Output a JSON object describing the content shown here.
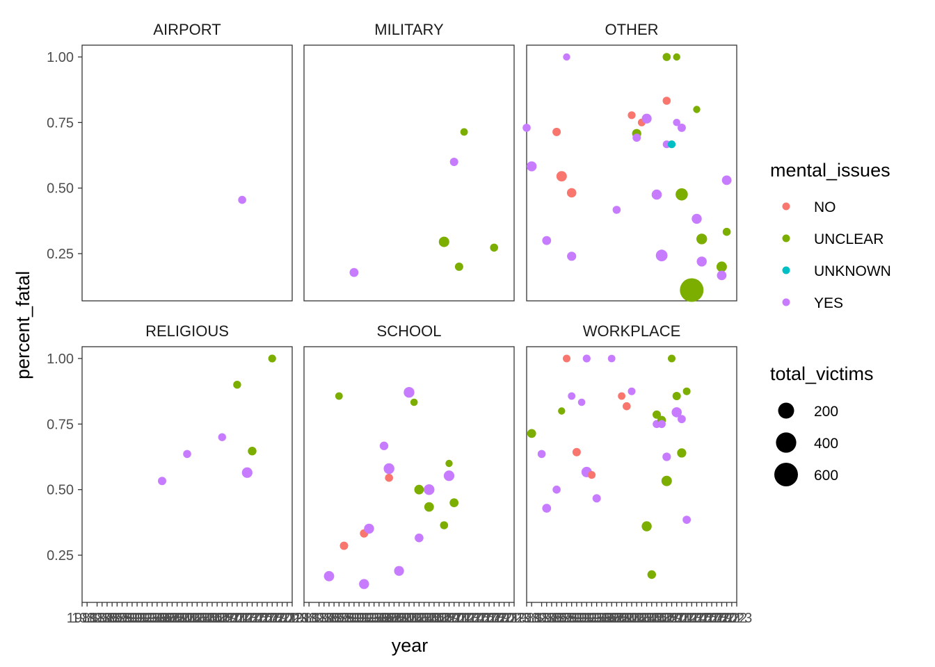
{
  "chart_data": {
    "type": "scatter",
    "xlabel": "year",
    "ylabel": "percent_fatal",
    "x_type": "category",
    "x_range": [
      1981,
      2023
    ],
    "ylim": [
      0.07,
      1.045
    ],
    "y_ticks": [
      0.25,
      0.5,
      0.75,
      1.0
    ],
    "y_tick_labels": [
      "0.25",
      "0.50",
      "0.75",
      "1.00"
    ],
    "grid": false,
    "color_legend": {
      "title": "mental_issues",
      "placement": "right",
      "entries": [
        {
          "label": "NO",
          "color": "#F8766D"
        },
        {
          "label": "UNCLEAR",
          "color": "#7CAE00"
        },
        {
          "label": "UNKNOWN",
          "color": "#00BFC4"
        },
        {
          "label": "YES",
          "color": "#C77CFF"
        }
      ]
    },
    "size_legend": {
      "title": "total_victims",
      "placement": "right",
      "entries": [
        {
          "label": "200",
          "value": 200
        },
        {
          "label": "400",
          "value": 400
        },
        {
          "label": "600",
          "value": 600
        }
      ]
    },
    "panels": [
      {
        "title": "AIRPORT",
        "points": [
          {
            "year": 2013,
            "pf": 0.455,
            "mi": "YES",
            "tv": 11
          }
        ]
      },
      {
        "title": "MILITARY",
        "points": [
          {
            "year": 1991,
            "pf": 0.178,
            "mi": "YES",
            "tv": 21
          },
          {
            "year": 2009,
            "pf": 0.295,
            "mi": "UNCLEAR",
            "tv": 43
          },
          {
            "year": 2011,
            "pf": 0.6,
            "mi": "YES",
            "tv": 14
          },
          {
            "year": 2012,
            "pf": 0.2,
            "mi": "UNCLEAR",
            "tv": 14
          },
          {
            "year": 2013,
            "pf": 0.714,
            "mi": "UNCLEAR",
            "tv": 7
          },
          {
            "year": 2019,
            "pf": 0.273,
            "mi": "UNCLEAR",
            "tv": 11
          }
        ]
      },
      {
        "title": "OTHER",
        "points": [
          {
            "year": 1981,
            "pf": 0.73,
            "mi": "YES",
            "tv": 11
          },
          {
            "year": 1982,
            "pf": 0.583,
            "mi": "YES",
            "tv": 36
          },
          {
            "year": 1985,
            "pf": 0.3,
            "mi": "YES",
            "tv": 20
          },
          {
            "year": 1987,
            "pf": 0.714,
            "mi": "NO",
            "tv": 14
          },
          {
            "year": 1988,
            "pf": 0.545,
            "mi": "NO",
            "tv": 44
          },
          {
            "year": 1989,
            "pf": 1.0,
            "mi": "YES",
            "tv": 5
          },
          {
            "year": 1990,
            "pf": 0.482,
            "mi": "NO",
            "tv": 29
          },
          {
            "year": 1990,
            "pf": 0.24,
            "mi": "YES",
            "tv": 25
          },
          {
            "year": 1999,
            "pf": 0.417,
            "mi": "YES",
            "tv": 12
          },
          {
            "year": 2002,
            "pf": 0.778,
            "mi": "NO",
            "tv": 9
          },
          {
            "year": 2003,
            "pf": 0.708,
            "mi": "UNCLEAR",
            "tv": 24
          },
          {
            "year": 2003,
            "pf": 0.692,
            "mi": "YES",
            "tv": 13
          },
          {
            "year": 2004,
            "pf": 0.75,
            "mi": "NO",
            "tv": 8
          },
          {
            "year": 2005,
            "pf": 0.765,
            "mi": "YES",
            "tv": 34
          },
          {
            "year": 2007,
            "pf": 0.475,
            "mi": "YES",
            "tv": 40
          },
          {
            "year": 2008,
            "pf": 0.243,
            "mi": "YES",
            "tv": 70
          },
          {
            "year": 2009,
            "pf": 1.0,
            "mi": "UNCLEAR",
            "tv": 12
          },
          {
            "year": 2009,
            "pf": 0.833,
            "mi": "NO",
            "tv": 12
          },
          {
            "year": 2009,
            "pf": 0.667,
            "mi": "YES",
            "tv": 9
          },
          {
            "year": 2010,
            "pf": 0.667,
            "mi": "UNKNOWN",
            "tv": 9
          },
          {
            "year": 2011,
            "pf": 1.0,
            "mi": "UNCLEAR",
            "tv": 5
          },
          {
            "year": 2011,
            "pf": 0.75,
            "mi": "YES",
            "tv": 6
          },
          {
            "year": 2012,
            "pf": 0.476,
            "mi": "UNCLEAR",
            "tv": 82
          },
          {
            "year": 2012,
            "pf": 0.73,
            "mi": "YES",
            "tv": 15
          },
          {
            "year": 2014,
            "pf": 0.111,
            "mi": "UNCLEAR",
            "tv": 604
          },
          {
            "year": 2015,
            "pf": 0.8,
            "mi": "UNCLEAR",
            "tv": 5
          },
          {
            "year": 2015,
            "pf": 0.383,
            "mi": "YES",
            "tv": 36
          },
          {
            "year": 2016,
            "pf": 0.306,
            "mi": "UNCLEAR",
            "tv": 49
          },
          {
            "year": 2016,
            "pf": 0.22,
            "mi": "YES",
            "tv": 36
          },
          {
            "year": 2020,
            "pf": 0.2,
            "mi": "UNCLEAR",
            "tv": 45
          },
          {
            "year": 2020,
            "pf": 0.167,
            "mi": "YES",
            "tv": 30
          },
          {
            "year": 2021,
            "pf": 0.53,
            "mi": "YES",
            "tv": 30
          },
          {
            "year": 2021,
            "pf": 0.333,
            "mi": "UNCLEAR",
            "tv": 12
          }
        ]
      },
      {
        "title": "RELIGIOUS",
        "points": [
          {
            "year": 1997,
            "pf": 0.533,
            "mi": "YES",
            "tv": 15
          },
          {
            "year": 2002,
            "pf": 0.636,
            "mi": "YES",
            "tv": 11
          },
          {
            "year": 2009,
            "pf": 0.7,
            "mi": "YES",
            "tv": 10
          },
          {
            "year": 2012,
            "pf": 0.9,
            "mi": "UNCLEAR",
            "tv": 10
          },
          {
            "year": 2014,
            "pf": 0.565,
            "mi": "YES",
            "tv": 46
          },
          {
            "year": 2015,
            "pf": 0.647,
            "mi": "UNCLEAR",
            "tv": 17
          },
          {
            "year": 2019,
            "pf": 1.0,
            "mi": "UNCLEAR",
            "tv": 9
          }
        ]
      },
      {
        "title": "SCHOOL",
        "points": [
          {
            "year": 1986,
            "pf": 0.17,
            "mi": "YES",
            "tv": 41
          },
          {
            "year": 1988,
            "pf": 0.857,
            "mi": "UNCLEAR",
            "tv": 7
          },
          {
            "year": 1989,
            "pf": 0.286,
            "mi": "NO",
            "tv": 14
          },
          {
            "year": 1993,
            "pf": 0.333,
            "mi": "NO",
            "tv": 15
          },
          {
            "year": 1993,
            "pf": 0.14,
            "mi": "YES",
            "tv": 36
          },
          {
            "year": 1994,
            "pf": 0.351,
            "mi": "YES",
            "tv": 37
          },
          {
            "year": 1997,
            "pf": 0.667,
            "mi": "YES",
            "tv": 18
          },
          {
            "year": 1998,
            "pf": 0.545,
            "mi": "NO",
            "tv": 11
          },
          {
            "year": 1998,
            "pf": 0.58,
            "mi": "YES",
            "tv": 50
          },
          {
            "year": 2000,
            "pf": 0.19,
            "mi": "YES",
            "tv": 35
          },
          {
            "year": 2002,
            "pf": 0.871,
            "mi": "YES",
            "tv": 48
          },
          {
            "year": 2003,
            "pf": 0.833,
            "mi": "UNCLEAR",
            "tv": 6
          },
          {
            "year": 2004,
            "pf": 0.5,
            "mi": "UNCLEAR",
            "tv": 30
          },
          {
            "year": 2004,
            "pf": 0.316,
            "mi": "YES",
            "tv": 19
          },
          {
            "year": 2006,
            "pf": 0.5,
            "mi": "YES",
            "tv": 50
          },
          {
            "year": 2006,
            "pf": 0.434,
            "mi": "UNCLEAR",
            "tv": 30
          },
          {
            "year": 2009,
            "pf": 0.364,
            "mi": "UNCLEAR",
            "tv": 11
          },
          {
            "year": 2010,
            "pf": 0.6,
            "mi": "UNCLEAR",
            "tv": 5
          },
          {
            "year": 2010,
            "pf": 0.553,
            "mi": "YES",
            "tv": 47
          },
          {
            "year": 2011,
            "pf": 0.45,
            "mi": "UNCLEAR",
            "tv": 20
          }
        ]
      },
      {
        "title": "WORKPLACE",
        "points": [
          {
            "year": 1982,
            "pf": 0.714,
            "mi": "UNCLEAR",
            "tv": 21
          },
          {
            "year": 1984,
            "pf": 0.636,
            "mi": "YES",
            "tv": 11
          },
          {
            "year": 1985,
            "pf": 0.429,
            "mi": "YES",
            "tv": 21
          },
          {
            "year": 1987,
            "pf": 0.5,
            "mi": "YES",
            "tv": 12
          },
          {
            "year": 1988,
            "pf": 0.8,
            "mi": "UNCLEAR",
            "tv": 5
          },
          {
            "year": 1989,
            "pf": 1.0,
            "mi": "NO",
            "tv": 8
          },
          {
            "year": 1990,
            "pf": 0.857,
            "mi": "YES",
            "tv": 7
          },
          {
            "year": 1991,
            "pf": 0.643,
            "mi": "NO",
            "tv": 14
          },
          {
            "year": 1992,
            "pf": 0.833,
            "mi": "YES",
            "tv": 6
          },
          {
            "year": 1993,
            "pf": 1.0,
            "mi": "YES",
            "tv": 9
          },
          {
            "year": 1993,
            "pf": 0.567,
            "mi": "YES",
            "tv": 44
          },
          {
            "year": 1994,
            "pf": 0.556,
            "mi": "NO",
            "tv": 9
          },
          {
            "year": 1995,
            "pf": 0.467,
            "mi": "YES",
            "tv": 15
          },
          {
            "year": 1998,
            "pf": 1.0,
            "mi": "YES",
            "tv": 7
          },
          {
            "year": 2000,
            "pf": 0.857,
            "mi": "NO",
            "tv": 7
          },
          {
            "year": 2001,
            "pf": 0.818,
            "mi": "NO",
            "tv": 11
          },
          {
            "year": 2002,
            "pf": 0.875,
            "mi": "YES",
            "tv": 8
          },
          {
            "year": 2005,
            "pf": 0.36,
            "mi": "UNCLEAR",
            "tv": 36
          },
          {
            "year": 2006,
            "pf": 0.176,
            "mi": "UNCLEAR",
            "tv": 17
          },
          {
            "year": 2007,
            "pf": 0.786,
            "mi": "UNCLEAR",
            "tv": 14
          },
          {
            "year": 2007,
            "pf": 0.75,
            "mi": "YES",
            "tv": 12
          },
          {
            "year": 2008,
            "pf": 0.765,
            "mi": "UNCLEAR",
            "tv": 17
          },
          {
            "year": 2008,
            "pf": 0.75,
            "mi": "YES",
            "tv": 12
          },
          {
            "year": 2009,
            "pf": 0.625,
            "mi": "YES",
            "tv": 16
          },
          {
            "year": 2009,
            "pf": 0.533,
            "mi": "UNCLEAR",
            "tv": 45
          },
          {
            "year": 2010,
            "pf": 1.0,
            "mi": "UNCLEAR",
            "tv": 8
          },
          {
            "year": 2011,
            "pf": 0.857,
            "mi": "UNCLEAR",
            "tv": 14
          },
          {
            "year": 2011,
            "pf": 0.795,
            "mi": "YES",
            "tv": 39
          },
          {
            "year": 2012,
            "pf": 0.769,
            "mi": "YES",
            "tv": 13
          },
          {
            "year": 2012,
            "pf": 0.64,
            "mi": "UNCLEAR",
            "tv": 25
          },
          {
            "year": 2013,
            "pf": 0.875,
            "mi": "UNCLEAR",
            "tv": 8
          },
          {
            "year": 2013,
            "pf": 0.385,
            "mi": "YES",
            "tv": 13
          }
        ]
      }
    ],
    "x_tick_labels": [
      "1981",
      "1982",
      "1984",
      "1985",
      "1986",
      "1987",
      "1988",
      "1989",
      "1990",
      "1991",
      "1992",
      "1993",
      "1994",
      "1995",
      "1996",
      "1997",
      "1998",
      "1999",
      "2000",
      "2001",
      "2002",
      "2003",
      "2004",
      "2005",
      "2006",
      "2007",
      "2008",
      "2009",
      "2010",
      "2011",
      "2012",
      "2013",
      "2014",
      "2015",
      "2016",
      "2017",
      "2018",
      "2019",
      "2020",
      "2021",
      "2022",
      "2023"
    ]
  }
}
